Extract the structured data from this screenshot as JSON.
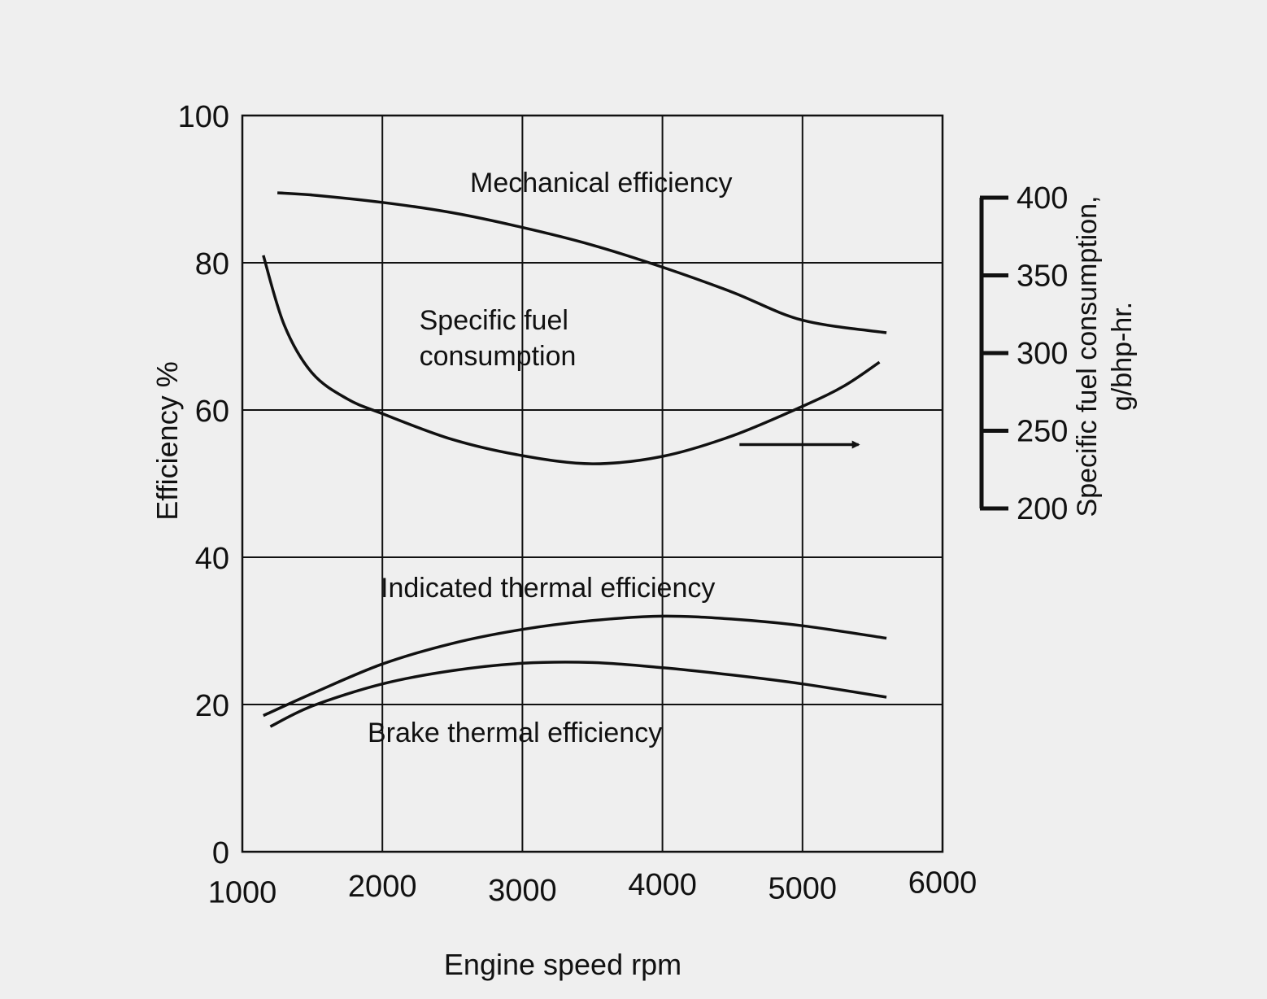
{
  "chart_data": {
    "type": "line",
    "xlabel": "Engine speed rpm",
    "ylabel": "Efficiency %",
    "secondary_ylabel": [
      "Specific fuel consumption,",
      "g/bhp-hr."
    ],
    "xlim": [
      1000,
      6000
    ],
    "ylim": [
      0,
      100
    ],
    "secondary_ylim": [
      200,
      400
    ],
    "x_ticks": [
      "1000",
      "2000",
      "3000",
      "4000",
      "5000",
      "6000"
    ],
    "y_ticks": [
      "0",
      "20",
      "40",
      "60",
      "80",
      "100"
    ],
    "secondary_ticks": [
      "400",
      "350",
      "300",
      "250",
      "200"
    ],
    "grid": true,
    "series": [
      {
        "name": "Mechanical efficiency",
        "x": [
          1250,
          1500,
          2000,
          2500,
          3000,
          3500,
          4000,
          4500,
          5000,
          5600
        ],
        "y": [
          89.5,
          89.2,
          88.2,
          86.8,
          84.8,
          82.4,
          79.4,
          76.0,
          72.2,
          70.5
        ]
      },
      {
        "name": "Specific fuel consumption",
        "x": [
          1150,
          1300,
          1500,
          1750,
          2000,
          2500,
          3000,
          3500,
          4000,
          4500,
          5000,
          5300,
          5550
        ],
        "y": [
          81,
          71.5,
          65,
          61.5,
          59.5,
          56,
          53.8,
          52.7,
          53.7,
          56.5,
          60.5,
          63.3,
          66.5
        ]
      },
      {
        "name": "Indicated thermal efficiency",
        "x": [
          1150,
          1500,
          2000,
          2500,
          3000,
          3500,
          4000,
          4500,
          5000,
          5600
        ],
        "y": [
          18.5,
          21.5,
          25.5,
          28.3,
          30.2,
          31.4,
          32.0,
          31.6,
          30.7,
          29.0
        ]
      },
      {
        "name": "Brake thermal efficiency",
        "x": [
          1200,
          1500,
          2000,
          2500,
          3000,
          3500,
          4000,
          4500,
          5000,
          5600
        ],
        "y": [
          17.0,
          19.8,
          22.8,
          24.6,
          25.6,
          25.7,
          25.0,
          24.0,
          22.8,
          21.0
        ]
      }
    ],
    "annotation_arrow": {
      "from": [
        4550,
        55.3
      ],
      "to": [
        5400,
        55.3
      ]
    }
  }
}
